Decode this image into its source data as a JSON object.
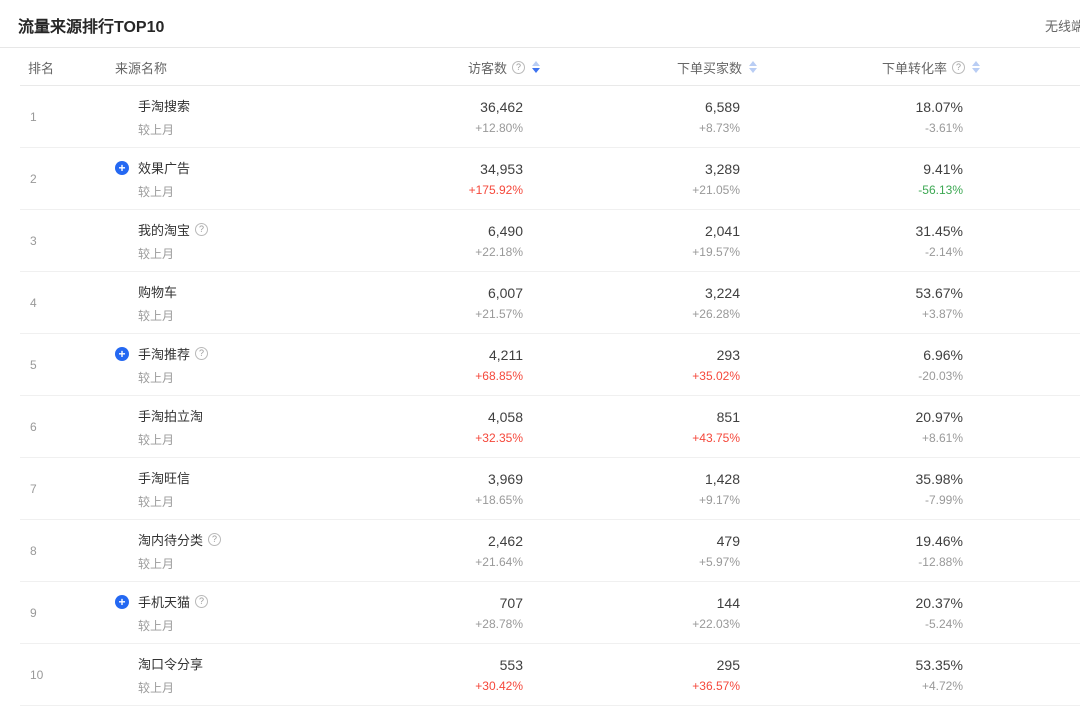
{
  "page": {
    "title": "流量来源排行TOP10",
    "channel_label": "无线端"
  },
  "table": {
    "columns": {
      "rank": "排名",
      "source": "来源名称",
      "visitors": "访客数",
      "buyers": "下单买家数",
      "conversion": "下单转化率"
    },
    "visitors_sort_state": "desc",
    "compare_label": "较上月",
    "rows": [
      {
        "rank": "1",
        "name": "手淘搜索",
        "has_plus": false,
        "has_help": false,
        "visitors": "36,462",
        "visitors_change": "+12.80%",
        "visitors_trend": "neutral",
        "buyers": "6,589",
        "buyers_change": "+8.73%",
        "buyers_trend": "neutral",
        "conversion": "18.07%",
        "conversion_change": "-3.61%",
        "conversion_trend": "neutral"
      },
      {
        "rank": "2",
        "name": "效果广告",
        "has_plus": true,
        "has_help": false,
        "visitors": "34,953",
        "visitors_change": "+175.92%",
        "visitors_trend": "red",
        "buyers": "3,289",
        "buyers_change": "+21.05%",
        "buyers_trend": "neutral",
        "conversion": "9.41%",
        "conversion_change": "-56.13%",
        "conversion_trend": "green"
      },
      {
        "rank": "3",
        "name": "我的淘宝",
        "has_plus": false,
        "has_help": true,
        "visitors": "6,490",
        "visitors_change": "+22.18%",
        "visitors_trend": "neutral",
        "buyers": "2,041",
        "buyers_change": "+19.57%",
        "buyers_trend": "neutral",
        "conversion": "31.45%",
        "conversion_change": "-2.14%",
        "conversion_trend": "neutral"
      },
      {
        "rank": "4",
        "name": "购物车",
        "has_plus": false,
        "has_help": false,
        "visitors": "6,007",
        "visitors_change": "+21.57%",
        "visitors_trend": "neutral",
        "buyers": "3,224",
        "buyers_change": "+26.28%",
        "buyers_trend": "neutral",
        "conversion": "53.67%",
        "conversion_change": "+3.87%",
        "conversion_trend": "neutral"
      },
      {
        "rank": "5",
        "name": "手淘推荐",
        "has_plus": true,
        "has_help": true,
        "visitors": "4,211",
        "visitors_change": "+68.85%",
        "visitors_trend": "red",
        "buyers": "293",
        "buyers_change": "+35.02%",
        "buyers_trend": "red",
        "conversion": "6.96%",
        "conversion_change": "-20.03%",
        "conversion_trend": "neutral"
      },
      {
        "rank": "6",
        "name": "手淘拍立淘",
        "has_plus": false,
        "has_help": false,
        "visitors": "4,058",
        "visitors_change": "+32.35%",
        "visitors_trend": "red",
        "buyers": "851",
        "buyers_change": "+43.75%",
        "buyers_trend": "red",
        "conversion": "20.97%",
        "conversion_change": "+8.61%",
        "conversion_trend": "neutral"
      },
      {
        "rank": "7",
        "name": "手淘旺信",
        "has_plus": false,
        "has_help": false,
        "visitors": "3,969",
        "visitors_change": "+18.65%",
        "visitors_trend": "neutral",
        "buyers": "1,428",
        "buyers_change": "+9.17%",
        "buyers_trend": "neutral",
        "conversion": "35.98%",
        "conversion_change": "-7.99%",
        "conversion_trend": "neutral"
      },
      {
        "rank": "8",
        "name": "淘内待分类",
        "has_plus": false,
        "has_help": true,
        "visitors": "2,462",
        "visitors_change": "+21.64%",
        "visitors_trend": "neutral",
        "buyers": "479",
        "buyers_change": "+5.97%",
        "buyers_trend": "neutral",
        "conversion": "19.46%",
        "conversion_change": "-12.88%",
        "conversion_trend": "neutral"
      },
      {
        "rank": "9",
        "name": "手机天猫",
        "has_plus": true,
        "has_help": true,
        "visitors": "707",
        "visitors_change": "+28.78%",
        "visitors_trend": "neutral",
        "buyers": "144",
        "buyers_change": "+22.03%",
        "buyers_trend": "neutral",
        "conversion": "20.37%",
        "conversion_change": "-5.24%",
        "conversion_trend": "neutral"
      },
      {
        "rank": "10",
        "name": "淘口令分享",
        "has_plus": false,
        "has_help": false,
        "visitors": "553",
        "visitors_change": "+30.42%",
        "visitors_trend": "red",
        "buyers": "295",
        "buyers_change": "+36.57%",
        "buyers_trend": "red",
        "conversion": "53.35%",
        "conversion_change": "+4.72%",
        "conversion_trend": "neutral"
      }
    ]
  },
  "icons": {
    "help": "?",
    "expand_plus": "+"
  },
  "colors": {
    "increase_red": "#f5483b",
    "decrease_green": "#3da853",
    "neutral_gray": "#999999",
    "expand_icon_blue": "#2468f2",
    "sort_active_blue": "#3e73f0",
    "sort_inactive_blue": "#b9cdf4"
  }
}
